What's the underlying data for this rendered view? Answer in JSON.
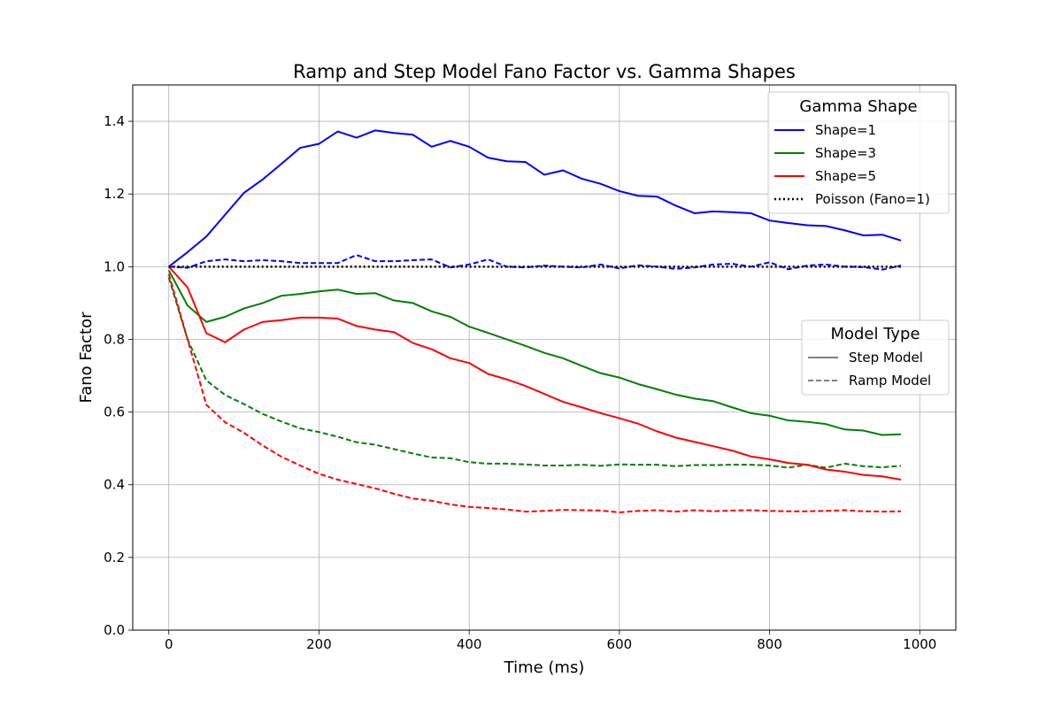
{
  "chart_data": {
    "type": "line",
    "title": "Ramp and Step Model Fano Factor vs. Gamma Shapes",
    "xlabel": "Time (ms)",
    "ylabel": "Fano Factor",
    "xlim": [
      -48,
      1048
    ],
    "ylim": [
      0.0,
      1.5
    ],
    "xticks": [
      0,
      200,
      400,
      600,
      800,
      1000
    ],
    "yticks": [
      0.0,
      0.2,
      0.4,
      0.6,
      0.8,
      1.0,
      1.2,
      1.4
    ],
    "grid": true,
    "x": [
      0,
      25,
      50,
      75,
      100,
      125,
      150,
      175,
      200,
      225,
      250,
      275,
      300,
      325,
      350,
      375,
      400,
      425,
      450,
      475,
      500,
      525,
      550,
      575,
      600,
      625,
      650,
      675,
      700,
      725,
      750,
      775,
      800,
      825,
      850,
      875,
      900,
      925,
      950,
      975
    ],
    "series": [
      {
        "shape": "Shape=1",
        "model": "Step Model",
        "color": "#0000ff",
        "dash": "solid",
        "values": [
          1.0,
          1.04,
          1.083,
          1.143,
          1.203,
          1.24,
          1.283,
          1.327,
          1.338,
          1.372,
          1.355,
          1.375,
          1.368,
          1.363,
          1.33,
          1.346,
          1.33,
          1.3,
          1.29,
          1.288,
          1.253,
          1.265,
          1.242,
          1.228,
          1.208,
          1.195,
          1.193,
          1.168,
          1.147,
          1.152,
          1.15,
          1.147,
          1.127,
          1.12,
          1.114,
          1.112,
          1.1,
          1.086,
          1.088,
          1.072
        ]
      },
      {
        "shape": "Shape=1",
        "model": "Ramp Model",
        "color": "#0000ff",
        "dash": "dashed",
        "values": [
          1.0,
          0.997,
          1.015,
          1.02,
          1.015,
          1.018,
          1.015,
          1.01,
          1.01,
          1.01,
          1.032,
          1.015,
          1.015,
          1.018,
          1.02,
          0.998,
          1.006,
          1.02,
          1.0,
          0.998,
          1.003,
          1.0,
          0.998,
          1.006,
          0.995,
          1.004,
          1.0,
          0.994,
          0.998,
          1.006,
          1.008,
          1.0,
          1.012,
          0.993,
          1.003,
          1.006,
          1.0,
          0.999,
          0.992,
          1.003
        ]
      },
      {
        "shape": "Shape=3",
        "model": "Step Model",
        "color": "#008000",
        "dash": "solid",
        "values": [
          0.99,
          0.893,
          0.848,
          0.862,
          0.885,
          0.9,
          0.92,
          0.925,
          0.932,
          0.937,
          0.925,
          0.927,
          0.907,
          0.9,
          0.877,
          0.862,
          0.835,
          0.818,
          0.8,
          0.782,
          0.763,
          0.748,
          0.727,
          0.707,
          0.695,
          0.677,
          0.663,
          0.648,
          0.637,
          0.63,
          0.613,
          0.597,
          0.59,
          0.577,
          0.573,
          0.567,
          0.552,
          0.549,
          0.537,
          0.539
        ]
      },
      {
        "shape": "Shape=3",
        "model": "Ramp Model",
        "color": "#008000",
        "dash": "dashed",
        "values": [
          0.97,
          0.8,
          0.687,
          0.647,
          0.622,
          0.595,
          0.574,
          0.555,
          0.545,
          0.532,
          0.517,
          0.51,
          0.498,
          0.486,
          0.475,
          0.473,
          0.462,
          0.458,
          0.458,
          0.456,
          0.453,
          0.453,
          0.455,
          0.452,
          0.456,
          0.455,
          0.455,
          0.451,
          0.454,
          0.454,
          0.455,
          0.455,
          0.453,
          0.447,
          0.455,
          0.447,
          0.458,
          0.451,
          0.448,
          0.452
        ]
      },
      {
        "shape": "Shape=5",
        "model": "Step Model",
        "color": "#ff0000",
        "dash": "solid",
        "values": [
          1.0,
          0.943,
          0.817,
          0.792,
          0.827,
          0.848,
          0.853,
          0.86,
          0.86,
          0.857,
          0.837,
          0.827,
          0.82,
          0.79,
          0.773,
          0.748,
          0.735,
          0.705,
          0.69,
          0.672,
          0.65,
          0.628,
          0.613,
          0.597,
          0.583,
          0.568,
          0.547,
          0.53,
          0.518,
          0.506,
          0.494,
          0.478,
          0.47,
          0.46,
          0.455,
          0.442,
          0.436,
          0.427,
          0.423,
          0.414
        ]
      },
      {
        "shape": "Shape=5",
        "model": "Ramp Model",
        "color": "#ff0000",
        "dash": "dashed",
        "values": [
          0.98,
          0.8,
          0.62,
          0.572,
          0.543,
          0.508,
          0.477,
          0.453,
          0.43,
          0.414,
          0.402,
          0.39,
          0.375,
          0.362,
          0.356,
          0.346,
          0.339,
          0.336,
          0.332,
          0.326,
          0.328,
          0.331,
          0.33,
          0.329,
          0.324,
          0.328,
          0.33,
          0.326,
          0.33,
          0.327,
          0.329,
          0.33,
          0.328,
          0.327,
          0.327,
          0.328,
          0.33,
          0.327,
          0.326,
          0.327
        ]
      },
      {
        "shape": "Poisson (Fano=1)",
        "model": "",
        "color": "#000000",
        "dash": "dotted",
        "values": [
          1,
          1,
          1,
          1,
          1,
          1,
          1,
          1,
          1,
          1,
          1,
          1,
          1,
          1,
          1,
          1,
          1,
          1,
          1,
          1,
          1,
          1,
          1,
          1,
          1,
          1,
          1,
          1,
          1,
          1,
          1,
          1,
          1,
          1,
          1,
          1,
          1,
          1,
          1,
          1
        ]
      }
    ],
    "legends": [
      {
        "title": "Gamma Shape",
        "placement": "top-right",
        "entries": [
          {
            "label": "Shape=1",
            "color": "#0000ff",
            "dash": "solid"
          },
          {
            "label": "Shape=3",
            "color": "#008000",
            "dash": "solid"
          },
          {
            "label": "Shape=5",
            "color": "#ff0000",
            "dash": "solid"
          },
          {
            "label": "Poisson (Fano=1)",
            "color": "#000000",
            "dash": "dotted"
          }
        ]
      },
      {
        "title": "Model Type",
        "placement": "center-right",
        "entries": [
          {
            "label": "Step Model",
            "color": "#808080",
            "dash": "solid"
          },
          {
            "label": "Ramp Model",
            "color": "#808080",
            "dash": "dashed"
          }
        ]
      }
    ]
  }
}
